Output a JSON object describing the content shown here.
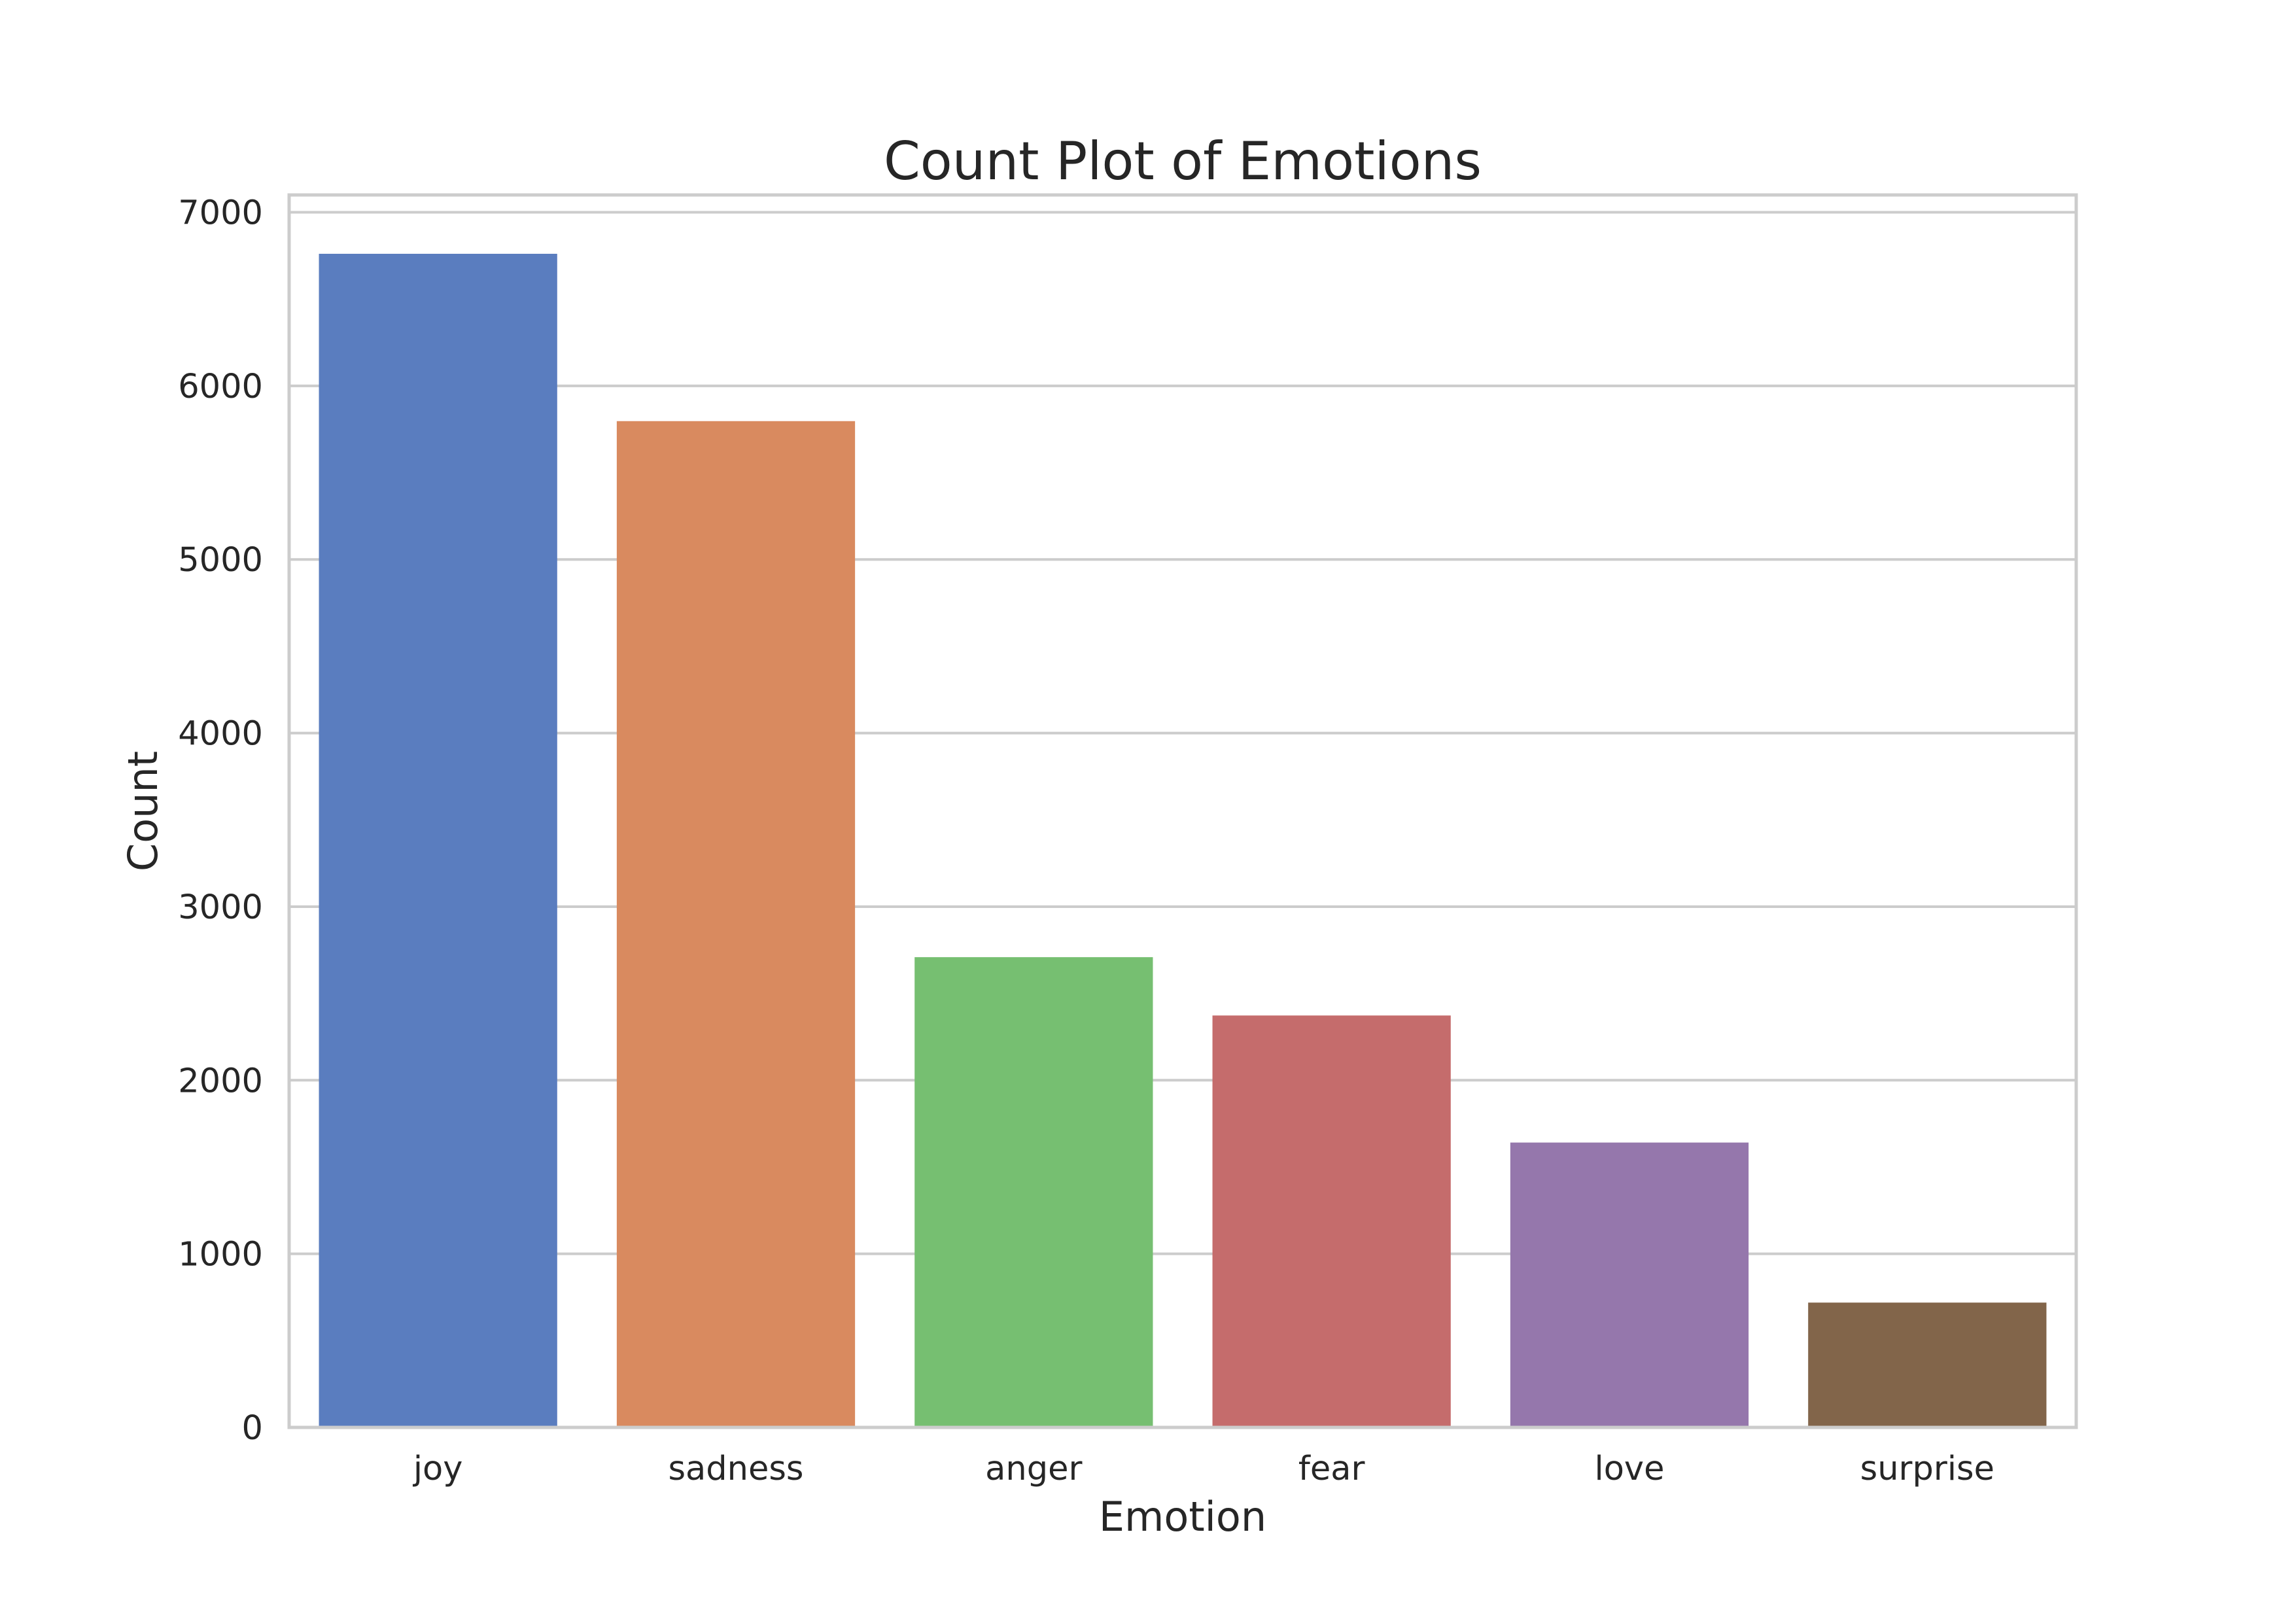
{
  "chart_data": {
    "type": "bar",
    "title": "Count Plot of Emotions",
    "xlabel": "Emotion",
    "ylabel": "Count",
    "categories": [
      "joy",
      "sadness",
      "anger",
      "fear",
      "love",
      "surprise"
    ],
    "values": [
      6761,
      5797,
      2709,
      2373,
      1641,
      719
    ],
    "colors": [
      "#5a7dbf",
      "#d98a5f",
      "#76bf71",
      "#c56c6c",
      "#9577ac",
      "#82654a"
    ],
    "ylim": [
      0,
      7100
    ],
    "yticks": [
      0,
      1000,
      2000,
      3000,
      4000,
      5000,
      6000,
      7000
    ],
    "grid": true,
    "legend": "none"
  }
}
